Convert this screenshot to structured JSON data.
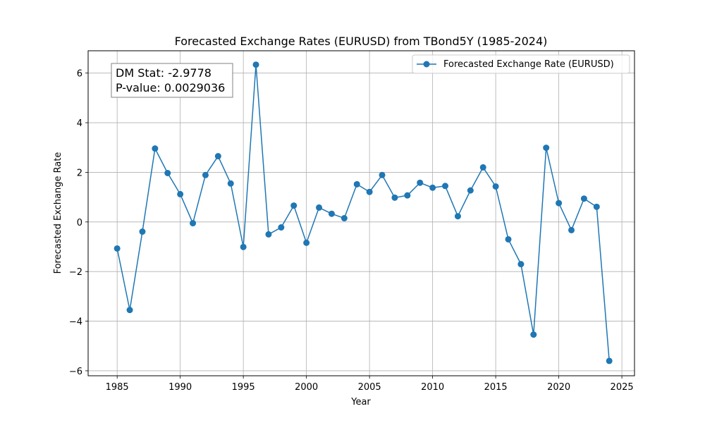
{
  "chart_data": {
    "type": "line",
    "title": "Forecasted Exchange Rates (EURUSD) from TBond5Y (1985-2024)",
    "xlabel": "Year",
    "ylabel": "Forecasted Exchange Rate",
    "xlim": [
      1982.7,
      2026.0
    ],
    "ylim": [
      -6.2,
      6.9
    ],
    "xticks": [
      1985,
      1990,
      1995,
      2000,
      2005,
      2010,
      2015,
      2020,
      2025
    ],
    "yticks": [
      -6,
      -4,
      -2,
      0,
      2,
      4,
      6
    ],
    "grid": true,
    "legend_position": "top-right",
    "series": [
      {
        "name": "Forecasted Exchange Rate (EURUSD)",
        "color": "#1f77b4",
        "x": [
          1985,
          1986,
          1987,
          1988,
          1989,
          1990,
          1991,
          1992,
          1993,
          1994,
          1995,
          1996,
          1997,
          1998,
          1999,
          2000,
          2001,
          2002,
          2003,
          2004,
          2005,
          2006,
          2007,
          2008,
          2009,
          2010,
          2011,
          2012,
          2013,
          2014,
          2015,
          2016,
          2017,
          2018,
          2019,
          2020,
          2021,
          2022,
          2023,
          2024
        ],
        "y": [
          -1.07,
          -3.55,
          -0.39,
          2.96,
          1.97,
          1.12,
          -0.05,
          1.89,
          2.65,
          1.55,
          -1.01,
          6.34,
          -0.5,
          -0.22,
          0.66,
          -0.84,
          0.58,
          0.33,
          0.15,
          1.52,
          1.21,
          1.89,
          0.98,
          1.07,
          1.58,
          1.38,
          1.45,
          0.23,
          1.27,
          2.2,
          1.43,
          -0.7,
          -1.7,
          -4.54,
          2.99,
          0.76,
          -0.33,
          0.94,
          0.61,
          -5.6
        ]
      }
    ],
    "annotation": {
      "position": "top-left",
      "lines": [
        "DM Stat: -2.9778",
        "P-value: 0.0029036"
      ]
    }
  }
}
